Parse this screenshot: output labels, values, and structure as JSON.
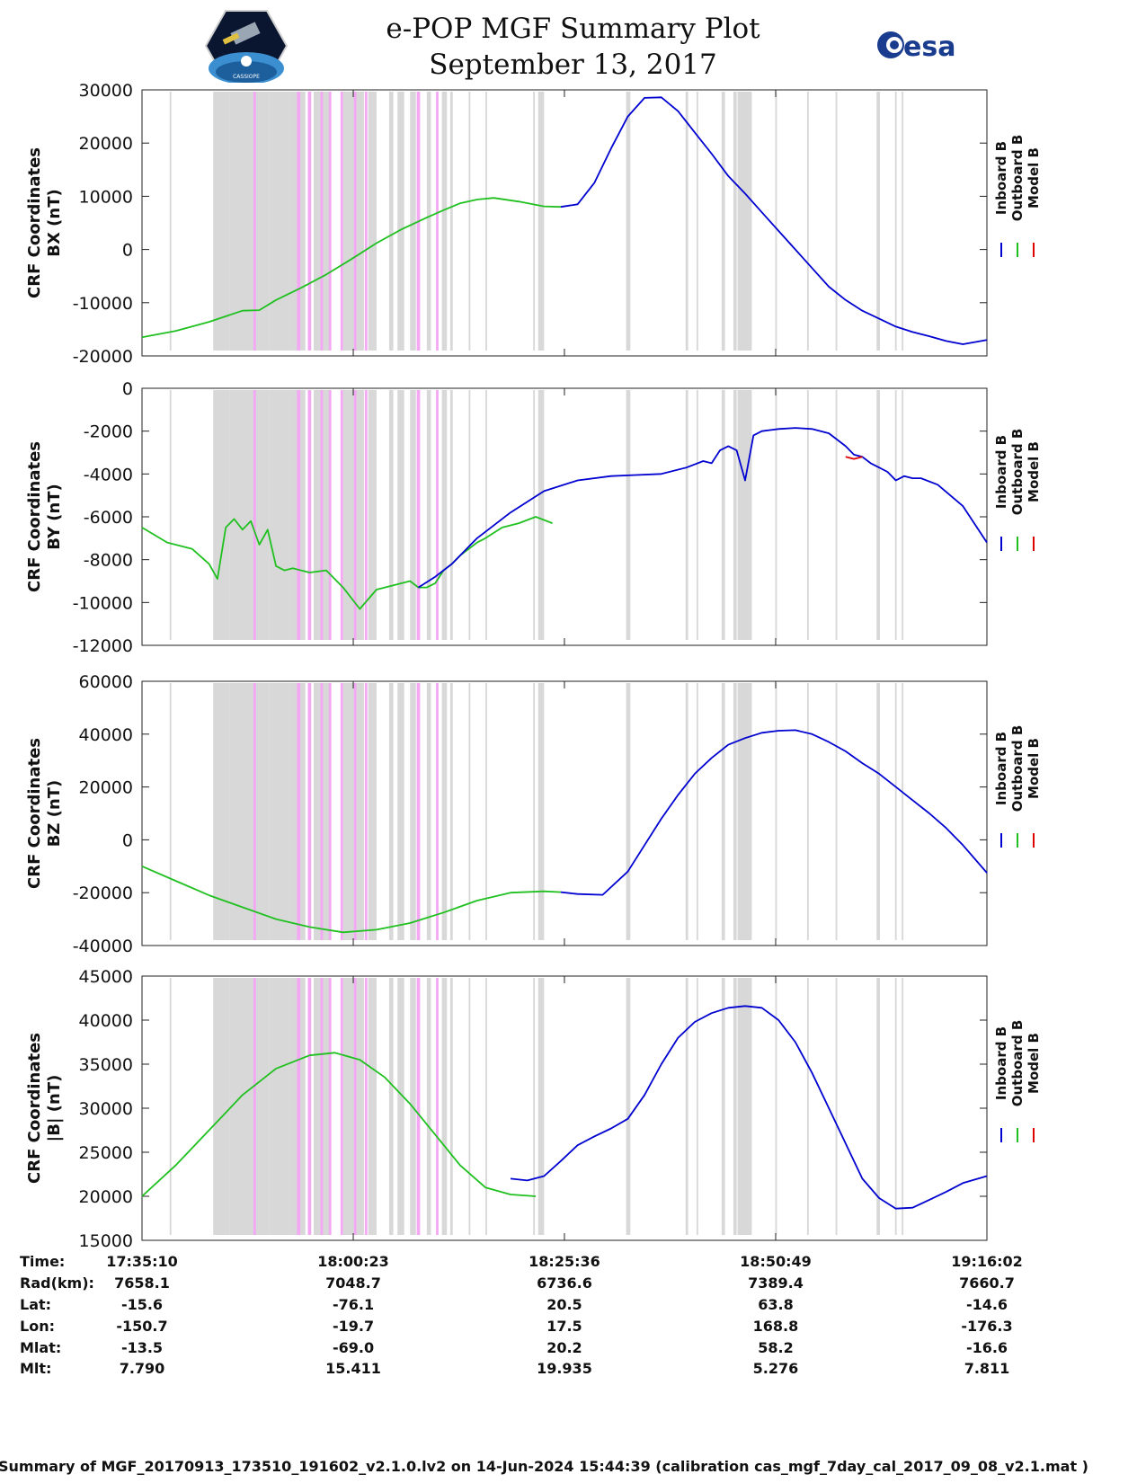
{
  "header": {
    "title_line1": "e-POP MGF Summary Plot",
    "title_line2": "September 13, 2017",
    "logo_left_text": "CASSIOPE",
    "logo_right_text": "esa"
  },
  "colors": {
    "inboard": "#0000d0",
    "outboard": "#20c020",
    "model": "#e00000",
    "shade_gray": "#d8d8d8",
    "shade_pink": "#f4a8f4"
  },
  "legend": {
    "inboard": "Inboard B",
    "outboard": "Outboard B",
    "model": "Model B"
  },
  "chart_data": [
    {
      "type": "line",
      "title": "",
      "ylabel_line1": "CRF Coordinates",
      "ylabel_line2": "BX (nT)",
      "ylim": [
        -20000,
        30000
      ],
      "yticks": [
        -20000,
        -10000,
        0,
        10000,
        20000,
        30000
      ],
      "x_unit": "minutes since 17:35:10",
      "xlim": [
        0,
        100.87
      ],
      "series": [
        {
          "name": "Outboard B",
          "x": [
            0,
            4,
            8,
            12,
            14,
            16,
            19,
            22,
            25,
            28,
            31,
            34,
            36,
            38,
            40,
            42,
            45,
            48,
            50
          ],
          "values": [
            -16500,
            -15300,
            -13600,
            -11500,
            -11400,
            -9500,
            -7200,
            -4700,
            -1800,
            1200,
            3800,
            6000,
            7400,
            8700,
            9400,
            9700,
            9000,
            8100,
            8000
          ]
        },
        {
          "name": "Inboard B",
          "x": [
            50,
            52,
            54,
            56,
            58,
            60,
            62,
            64,
            66,
            68,
            70,
            72,
            74,
            76,
            78,
            80,
            82,
            84,
            86,
            88,
            90,
            92,
            94,
            96,
            98,
            100.87
          ],
          "values": [
            8000,
            8500,
            12500,
            19000,
            25000,
            28500,
            28600,
            26000,
            22000,
            18000,
            13800,
            10500,
            7000,
            3500,
            0,
            -3500,
            -7000,
            -9500,
            -11500,
            -13000,
            -14500,
            -15500,
            -16300,
            -17200,
            -17800,
            -17000
          ]
        }
      ]
    },
    {
      "type": "line",
      "title": "",
      "ylabel_line1": "CRF Coordinates",
      "ylabel_line2": "BY (nT)",
      "ylim": [
        -12000,
        0
      ],
      "yticks": [
        -12000,
        -10000,
        -8000,
        -6000,
        -4000,
        -2000,
        0
      ],
      "x_unit": "minutes since 17:35:10",
      "xlim": [
        0,
        100.87
      ],
      "series": [
        {
          "name": "Outboard B",
          "x": [
            0,
            3,
            6,
            8,
            9,
            10,
            11,
            12,
            13,
            14,
            15,
            16,
            17,
            18,
            20,
            22,
            24,
            26,
            28,
            30,
            32,
            33,
            34,
            35,
            36,
            37,
            38,
            39,
            40,
            41,
            43,
            45,
            47,
            49
          ],
          "values": [
            -6500,
            -7200,
            -7500,
            -8200,
            -8900,
            -6500,
            -6100,
            -6600,
            -6200,
            -7300,
            -6600,
            -8300,
            -8500,
            -8400,
            -8600,
            -8500,
            -9300,
            -10300,
            -9400,
            -9200,
            -9000,
            -9300,
            -9300,
            -9100,
            -8500,
            -8200,
            -7800,
            -7500,
            -7200,
            -7000,
            -6500,
            -6300,
            -6000,
            -6300
          ]
        },
        {
          "name": "Inboard B",
          "x": [
            33,
            35,
            37,
            40,
            44,
            48,
            52,
            56,
            59,
            62,
            65,
            67,
            68,
            69,
            70,
            71,
            72,
            73,
            74,
            75,
            76,
            78,
            80,
            82,
            84,
            85,
            86,
            87,
            88,
            89,
            90,
            91,
            92,
            93,
            95,
            98,
            100.87
          ],
          "values": [
            -9300,
            -8800,
            -8200,
            -7000,
            -5800,
            -4800,
            -4300,
            -4100,
            -4050,
            -4000,
            -3700,
            -3400,
            -3500,
            -2900,
            -2700,
            -2900,
            -4300,
            -2200,
            -2000,
            -1950,
            -1900,
            -1850,
            -1900,
            -2100,
            -2700,
            -3100,
            -3200,
            -3500,
            -3700,
            -3900,
            -4300,
            -4100,
            -4200,
            -4200,
            -4500,
            -5500,
            -7200
          ]
        },
        {
          "name": "Model B",
          "x": [
            84,
            85,
            86
          ],
          "values": [
            -3200,
            -3300,
            -3200
          ]
        }
      ]
    },
    {
      "type": "line",
      "title": "",
      "ylabel_line1": "CRF Coordinates",
      "ylabel_line2": "BZ (nT)",
      "ylim": [
        -40000,
        60000
      ],
      "yticks": [
        -40000,
        -20000,
        0,
        20000,
        40000,
        60000
      ],
      "x_unit": "minutes since 17:35:10",
      "xlim": [
        0,
        100.87
      ],
      "series": [
        {
          "name": "Outboard B",
          "x": [
            0,
            4,
            8,
            12,
            16,
            20,
            24,
            28,
            32,
            36,
            40,
            44,
            48,
            50
          ],
          "values": [
            -10000,
            -15500,
            -21000,
            -25500,
            -30000,
            -33000,
            -35000,
            -34000,
            -31500,
            -27500,
            -23000,
            -20000,
            -19500,
            -19800
          ]
        },
        {
          "name": "Inboard B",
          "x": [
            50,
            52,
            55,
            58,
            60,
            62,
            64,
            66,
            68,
            70,
            72,
            74,
            76,
            78,
            80,
            82,
            84,
            86,
            88,
            90,
            92,
            94,
            96,
            98,
            100.87
          ],
          "values": [
            -19800,
            -20500,
            -20800,
            -12000,
            -2000,
            8000,
            17000,
            25000,
            31000,
            36000,
            38500,
            40500,
            41300,
            41500,
            40000,
            37000,
            33500,
            29000,
            25000,
            20000,
            15000,
            10000,
            4500,
            -2000,
            -12500
          ]
        }
      ]
    },
    {
      "type": "line",
      "title": "",
      "ylabel_line1": "CRF Coordinates",
      "ylabel_line2": "|B| (nT)",
      "ylim": [
        15000,
        45000
      ],
      "yticks": [
        15000,
        20000,
        25000,
        30000,
        35000,
        40000,
        45000
      ],
      "x_unit": "minutes since 17:35:10",
      "xlim": [
        0,
        100.87
      ],
      "series": [
        {
          "name": "Outboard B",
          "x": [
            0,
            4,
            8,
            12,
            16,
            20,
            23,
            26,
            29,
            32,
            35,
            38,
            41,
            44,
            47
          ],
          "values": [
            20000,
            23500,
            27500,
            31500,
            34500,
            36000,
            36300,
            35500,
            33500,
            30500,
            27000,
            23500,
            21000,
            20200,
            20000
          ]
        },
        {
          "name": "Inboard B",
          "x": [
            44,
            46,
            48,
            50,
            52,
            54,
            56,
            58,
            60,
            62,
            64,
            66,
            68,
            70,
            72,
            74,
            76,
            78,
            80,
            82,
            84,
            86,
            88,
            90,
            92,
            94,
            96,
            98,
            100.87
          ],
          "values": [
            22000,
            21800,
            22300,
            24000,
            25800,
            26800,
            27700,
            28800,
            31500,
            35000,
            38000,
            39800,
            40800,
            41400,
            41600,
            41400,
            40000,
            37500,
            34000,
            30000,
            26000,
            22000,
            19800,
            18600,
            18700,
            19600,
            20500,
            21500,
            22300
          ]
        }
      ]
    }
  ],
  "bands_gray": [
    [
      3.3,
      3.5
    ],
    [
      8.5,
      10.5
    ],
    [
      10.5,
      13.5
    ],
    [
      13.5,
      15.2
    ],
    [
      15.2,
      17.5
    ],
    [
      17.5,
      19.5
    ],
    [
      20.5,
      22.5
    ],
    [
      24.0,
      26.5
    ],
    [
      27.0,
      28.0
    ],
    [
      29.5,
      30.0
    ],
    [
      30.5,
      31.3
    ],
    [
      32.0,
      32.7
    ],
    [
      34.0,
      34.5
    ],
    [
      35.8,
      36.4
    ],
    [
      36.8,
      37.1
    ],
    [
      39.0,
      39.2
    ],
    [
      41.0,
      41.2
    ],
    [
      46.7,
      46.9
    ],
    [
      47.5,
      48.0
    ],
    [
      66.2,
      66.4
    ],
    [
      69.2,
      69.6
    ],
    [
      70.6,
      71.0
    ],
    [
      71.1,
      72.8
    ],
    [
      75.6,
      75.8
    ],
    [
      79.4,
      79.6
    ],
    [
      82.8,
      83.0
    ],
    [
      87.7,
      88.1
    ],
    [
      89.9,
      90.1
    ],
    [
      90.7,
      90.9
    ]
  ],
  "bands_pink": [
    [
      13.3,
      13.6
    ],
    [
      18.5,
      18.9
    ],
    [
      19.8,
      20.2
    ],
    [
      21.3,
      21.6
    ],
    [
      22.3,
      22.6
    ],
    [
      23.7,
      24.0
    ],
    [
      25.3,
      25.6
    ],
    [
      26.6,
      26.9
    ],
    [
      32.8,
      33.2
    ],
    [
      35.1,
      35.4
    ]
  ],
  "bands_gray_late": [
    [
      47.3,
      47.6
    ],
    [
      57.8,
      58.3
    ],
    [
      64.9,
      65.2
    ]
  ],
  "xticks_min": [
    0,
    25.22,
    50.43,
    75.65,
    100.87
  ],
  "table": {
    "labels": [
      "Time:",
      "Rad(km):",
      "Lat:",
      "Lon:",
      "Mlat:",
      "Mlt:"
    ],
    "columns": [
      [
        "17:35:10",
        "7658.1",
        "-15.6",
        "-150.7",
        "-13.5",
        "7.790"
      ],
      [
        "18:00:23",
        "7048.7",
        "-76.1",
        "-19.7",
        "-69.0",
        "15.411"
      ],
      [
        "18:25:36",
        "6736.6",
        "20.5",
        "17.5",
        "20.2",
        "19.935"
      ],
      [
        "18:50:49",
        "7389.4",
        "63.8",
        "168.8",
        "58.2",
        "5.276"
      ],
      [
        "19:16:02",
        "7660.7",
        "-14.6",
        "-176.3",
        "-16.6",
        "7.811"
      ]
    ]
  },
  "footer": "Summary of MGF_20170913_173510_191602_v2.1.0.lv2 on 14-Jun-2024 15:44:39 (calibration cas_mgf_7day_cal_2017_09_08_v2.1.mat )"
}
